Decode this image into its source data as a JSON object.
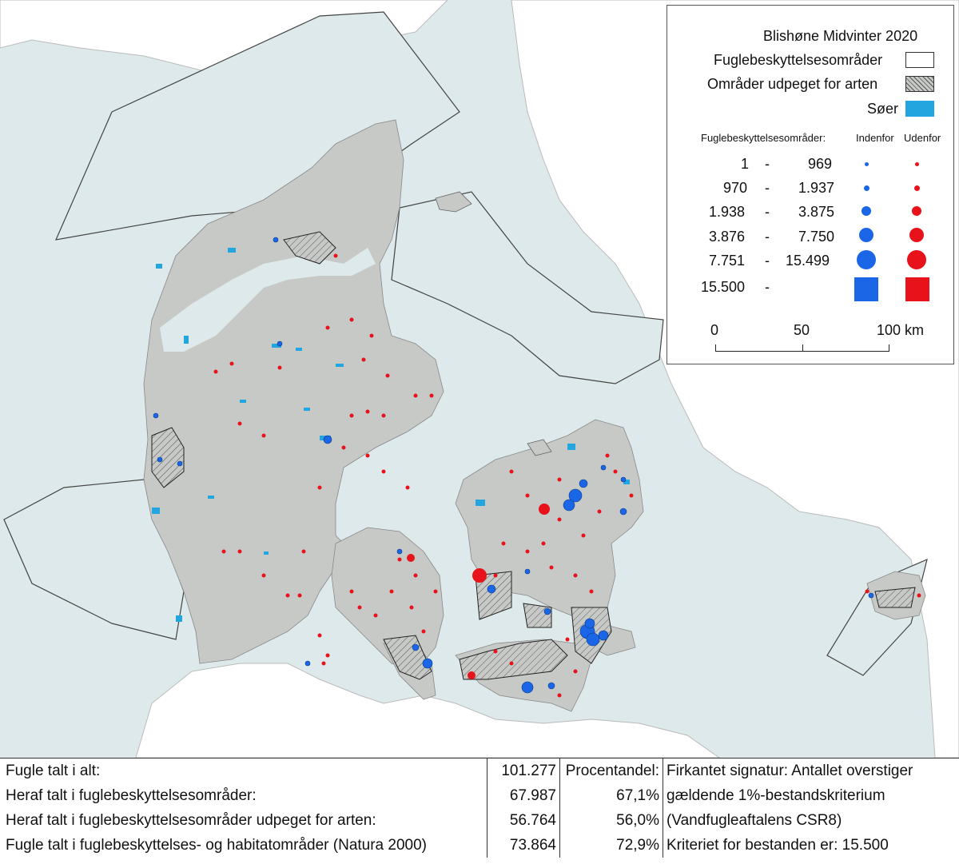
{
  "legend": {
    "title": "Blishøne Midvinter 2020",
    "protected_areas": "Fuglebeskyttelsesområder",
    "designated_areas": "Områder udpeget for arten",
    "lakes": "Søer",
    "column_header_label": "Fuglebeskyttelsesområder:",
    "inside_label": "Indenfor",
    "outside_label": "Udenfor",
    "classes": [
      {
        "from": "1",
        "dash": "-",
        "to": "969"
      },
      {
        "from": "970",
        "dash": "-",
        "to": "1.937"
      },
      {
        "from": "1.938",
        "dash": "-",
        "to": "3.875"
      },
      {
        "from": "3.876",
        "dash": "-",
        "to": "7.750"
      },
      {
        "from": "7.751",
        "dash": "-",
        "to": "15.499"
      },
      {
        "from": "15.500",
        "dash": "-",
        "to": ""
      }
    ],
    "scalebar": {
      "labels": [
        "0",
        "50",
        "100 km"
      ]
    },
    "colors": {
      "inside": "#1a66e6",
      "outside": "#e8121a",
      "lakes": "#23a6e0",
      "land": "#c7c9c7",
      "sea": "#dde9ea",
      "hatch": "#333333"
    }
  },
  "summary": {
    "rows": [
      {
        "label": "Fugle talt i alt:",
        "value": "101.277",
        "pct": "Procentandel:",
        "note": "Firkantet signatur: Antallet overstiger"
      },
      {
        "label": "Heraf talt i fuglebeskyttelsesområder:",
        "value": "67.987",
        "pct": "67,1%",
        "note": "gældende 1%-bestandskriterium"
      },
      {
        "label": "Heraf talt i fuglebeskyttelsesområder udpeget for arten:",
        "value": "56.764",
        "pct": "56,0%",
        "note": "(Vandfugleaftalens CSR8)"
      },
      {
        "label": "Fugle talt i fuglebeskyttelses- og habitatområder (Natura 2000)",
        "value": "73.864",
        "pct": "72,9%",
        "note": "Kriteriet for bestanden er: 15.500"
      }
    ]
  }
}
